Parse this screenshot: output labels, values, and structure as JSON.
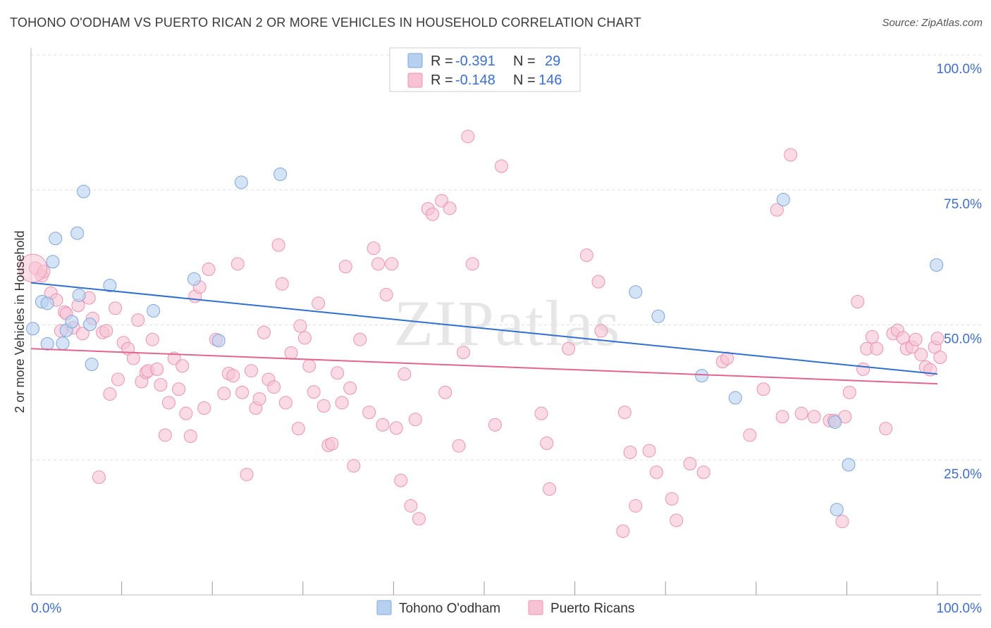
{
  "header": {
    "title": "TOHONO O'ODHAM VS PUERTO RICAN 2 OR MORE VEHICLES IN HOUSEHOLD CORRELATION CHART",
    "source": "Source: ZipAtlas.com"
  },
  "watermark": "ZIPatlas",
  "legend": {
    "rows": [
      {
        "r_label": "R =",
        "r_value": "-0.391",
        "n_label": "N =",
        "n_value": "29",
        "color": "#a9c8ee"
      },
      {
        "r_label": "R =",
        "r_value": "-0.148",
        "n_label": "N =",
        "n_value": "146",
        "color": "#f6b3c8"
      }
    ]
  },
  "colors": {
    "tohono_fill": "#b7d0f0",
    "tohono_stroke": "#7fa6dc",
    "tohono_line": "#2f6fd0",
    "pr_fill": "#f7c3d3",
    "pr_stroke": "#ec93b2",
    "pr_line": "#e4648f",
    "grid": "#dddddd",
    "tick_text": "#3f6fc6"
  },
  "chart_data": {
    "type": "scatter",
    "title": "TOHONO O'ODHAM VS PUERTO RICAN 2 OR MORE VEHICLES IN HOUSEHOLD CORRELATION CHART",
    "xlabel": "",
    "ylabel": "2 or more Vehicles in Household",
    "xlim": [
      0,
      100
    ],
    "ylim": [
      0,
      100
    ],
    "x_tick_labels": [
      "0.0%",
      "100.0%"
    ],
    "y_tick_labels": [
      "25.0%",
      "50.0%",
      "75.0%",
      "100.0%"
    ],
    "y_tick_values": [
      25,
      50,
      75,
      100
    ],
    "grid": true,
    "legend_position": "top-center",
    "series": [
      {
        "name": "Tohono O'odham",
        "R": -0.391,
        "N": 29,
        "trend": {
          "x": [
            0,
            100
          ],
          "y": [
            57.8,
            40.9
          ]
        },
        "points": [
          [
            0.2,
            49.3
          ],
          [
            1.2,
            54.3
          ],
          [
            1.8,
            54.0
          ],
          [
            1.8,
            46.5
          ],
          [
            2.4,
            61.7
          ],
          [
            2.7,
            66.0
          ],
          [
            3.5,
            46.6
          ],
          [
            3.9,
            49.0
          ],
          [
            4.5,
            50.6
          ],
          [
            5.1,
            67.0
          ],
          [
            5.3,
            55.5
          ],
          [
            5.8,
            74.7
          ],
          [
            6.5,
            50.1
          ],
          [
            6.7,
            42.7
          ],
          [
            8.7,
            57.3
          ],
          [
            13.5,
            52.6
          ],
          [
            18.0,
            58.5
          ],
          [
            20.7,
            47.1
          ],
          [
            23.2,
            76.4
          ],
          [
            27.5,
            77.9
          ],
          [
            66.7,
            56.1
          ],
          [
            69.2,
            51.6
          ],
          [
            74.0,
            40.6
          ],
          [
            77.7,
            36.5
          ],
          [
            83.0,
            73.2
          ],
          [
            88.7,
            32.0
          ],
          [
            90.2,
            24.1
          ],
          [
            88.9,
            15.8
          ],
          [
            99.9,
            61.1
          ]
        ]
      },
      {
        "name": "Puerto Ricans",
        "R": -0.148,
        "N": 146,
        "trend": {
          "x": [
            0,
            100
          ],
          "y": [
            45.6,
            39.1
          ]
        },
        "points": [
          [
            0.5,
            60.5
          ],
          [
            1.2,
            59.1
          ],
          [
            1.4,
            59.9
          ],
          [
            2.2,
            55.9
          ],
          [
            2.8,
            54.6
          ],
          [
            3.3,
            48.9
          ],
          [
            3.7,
            52.4
          ],
          [
            3.9,
            52.1
          ],
          [
            4.7,
            49.5
          ],
          [
            5.2,
            53.6
          ],
          [
            5.7,
            48.4
          ],
          [
            6.4,
            55.0
          ],
          [
            6.8,
            51.2
          ],
          [
            7.5,
            21.8
          ],
          [
            7.9,
            48.6
          ],
          [
            8.3,
            48.9
          ],
          [
            8.7,
            37.2
          ],
          [
            9.3,
            53.1
          ],
          [
            9.6,
            39.9
          ],
          [
            10.2,
            46.7
          ],
          [
            10.7,
            45.6
          ],
          [
            11.3,
            43.8
          ],
          [
            11.8,
            50.9
          ],
          [
            12.2,
            39.5
          ],
          [
            12.7,
            41.2
          ],
          [
            12.9,
            41.5
          ],
          [
            13.4,
            47.3
          ],
          [
            13.9,
            41.8
          ],
          [
            14.3,
            38.9
          ],
          [
            14.8,
            29.6
          ],
          [
            15.2,
            35.6
          ],
          [
            15.8,
            43.8
          ],
          [
            16.3,
            38.1
          ],
          [
            16.7,
            42.4
          ],
          [
            17.1,
            33.6
          ],
          [
            17.6,
            29.4
          ],
          [
            18.1,
            55.3
          ],
          [
            18.6,
            57.0
          ],
          [
            19.1,
            34.6
          ],
          [
            19.6,
            60.3
          ],
          [
            20.4,
            47.3
          ],
          [
            21.3,
            37.3
          ],
          [
            21.8,
            41.0
          ],
          [
            22.3,
            40.6
          ],
          [
            22.8,
            61.3
          ],
          [
            23.3,
            37.5
          ],
          [
            23.8,
            22.3
          ],
          [
            24.3,
            41.5
          ],
          [
            24.8,
            34.6
          ],
          [
            25.2,
            36.3
          ],
          [
            25.7,
            48.6
          ],
          [
            26.2,
            39.9
          ],
          [
            26.8,
            38.5
          ],
          [
            27.3,
            64.8
          ],
          [
            27.7,
            57.6
          ],
          [
            28.1,
            35.6
          ],
          [
            28.7,
            44.8
          ],
          [
            29.5,
            30.8
          ],
          [
            29.7,
            49.8
          ],
          [
            30.2,
            47.6
          ],
          [
            30.7,
            42.4
          ],
          [
            31.2,
            37.6
          ],
          [
            31.7,
            54.0
          ],
          [
            32.3,
            35.0
          ],
          [
            32.8,
            27.7
          ],
          [
            33.2,
            28.0
          ],
          [
            33.8,
            41.1
          ],
          [
            34.3,
            35.6
          ],
          [
            34.7,
            60.8
          ],
          [
            35.2,
            38.3
          ],
          [
            35.6,
            23.9
          ],
          [
            36.3,
            47.3
          ],
          [
            37.3,
            33.8
          ],
          [
            37.8,
            64.2
          ],
          [
            38.3,
            61.3
          ],
          [
            38.8,
            31.5
          ],
          [
            39.2,
            55.6
          ],
          [
            39.8,
            61.3
          ],
          [
            40.3,
            30.9
          ],
          [
            40.8,
            21.2
          ],
          [
            41.2,
            40.9
          ],
          [
            41.9,
            16.5
          ],
          [
            42.4,
            32.5
          ],
          [
            42.8,
            14.1
          ],
          [
            43.8,
            71.5
          ],
          [
            44.3,
            70.5
          ],
          [
            45.3,
            73.0
          ],
          [
            45.7,
            37.5
          ],
          [
            46.2,
            71.6
          ],
          [
            47.2,
            27.6
          ],
          [
            47.7,
            44.9
          ],
          [
            48.2,
            84.9
          ],
          [
            48.7,
            61.3
          ],
          [
            51.2,
            31.5
          ],
          [
            51.9,
            79.4
          ],
          [
            56.3,
            33.6
          ],
          [
            56.9,
            28.1
          ],
          [
            57.2,
            19.6
          ],
          [
            59.3,
            45.6
          ],
          [
            61.3,
            62.9
          ],
          [
            62.6,
            58.0
          ],
          [
            62.9,
            48.9
          ],
          [
            65.3,
            11.8
          ],
          [
            65.5,
            33.8
          ],
          [
            66.1,
            26.4
          ],
          [
            66.7,
            16.5
          ],
          [
            68.2,
            26.7
          ],
          [
            69.0,
            22.7
          ],
          [
            70.7,
            17.8
          ],
          [
            71.2,
            13.8
          ],
          [
            72.7,
            24.3
          ],
          [
            74.2,
            22.7
          ],
          [
            76.3,
            43.2
          ],
          [
            76.8,
            43.8
          ],
          [
            79.3,
            29.6
          ],
          [
            80.8,
            38.1
          ],
          [
            82.3,
            71.3
          ],
          [
            82.9,
            33.0
          ],
          [
            83.8,
            81.5
          ],
          [
            85.0,
            33.6
          ],
          [
            86.4,
            33.0
          ],
          [
            88.1,
            32.3
          ],
          [
            88.6,
            32.3
          ],
          [
            89.5,
            13.6
          ],
          [
            89.8,
            33.0
          ],
          [
            90.3,
            37.5
          ],
          [
            91.2,
            54.3
          ],
          [
            91.8,
            41.8
          ],
          [
            92.2,
            45.6
          ],
          [
            92.8,
            47.8
          ],
          [
            93.3,
            45.6
          ],
          [
            94.3,
            30.8
          ],
          [
            95.1,
            48.4
          ],
          [
            95.6,
            49.0
          ],
          [
            96.2,
            47.6
          ],
          [
            96.6,
            45.6
          ],
          [
            97.2,
            45.9
          ],
          [
            97.6,
            47.3
          ],
          [
            98.2,
            44.5
          ],
          [
            98.7,
            42.2
          ],
          [
            99.2,
            41.7
          ],
          [
            99.7,
            45.9
          ],
          [
            100.0,
            47.5
          ],
          [
            100.3,
            44.0
          ]
        ]
      }
    ]
  },
  "bottom_legend": {
    "items": [
      {
        "label": "Tohono O'odham",
        "color": "#b7d0f0"
      },
      {
        "label": "Puerto Ricans",
        "color": "#f7c3d3"
      }
    ]
  }
}
